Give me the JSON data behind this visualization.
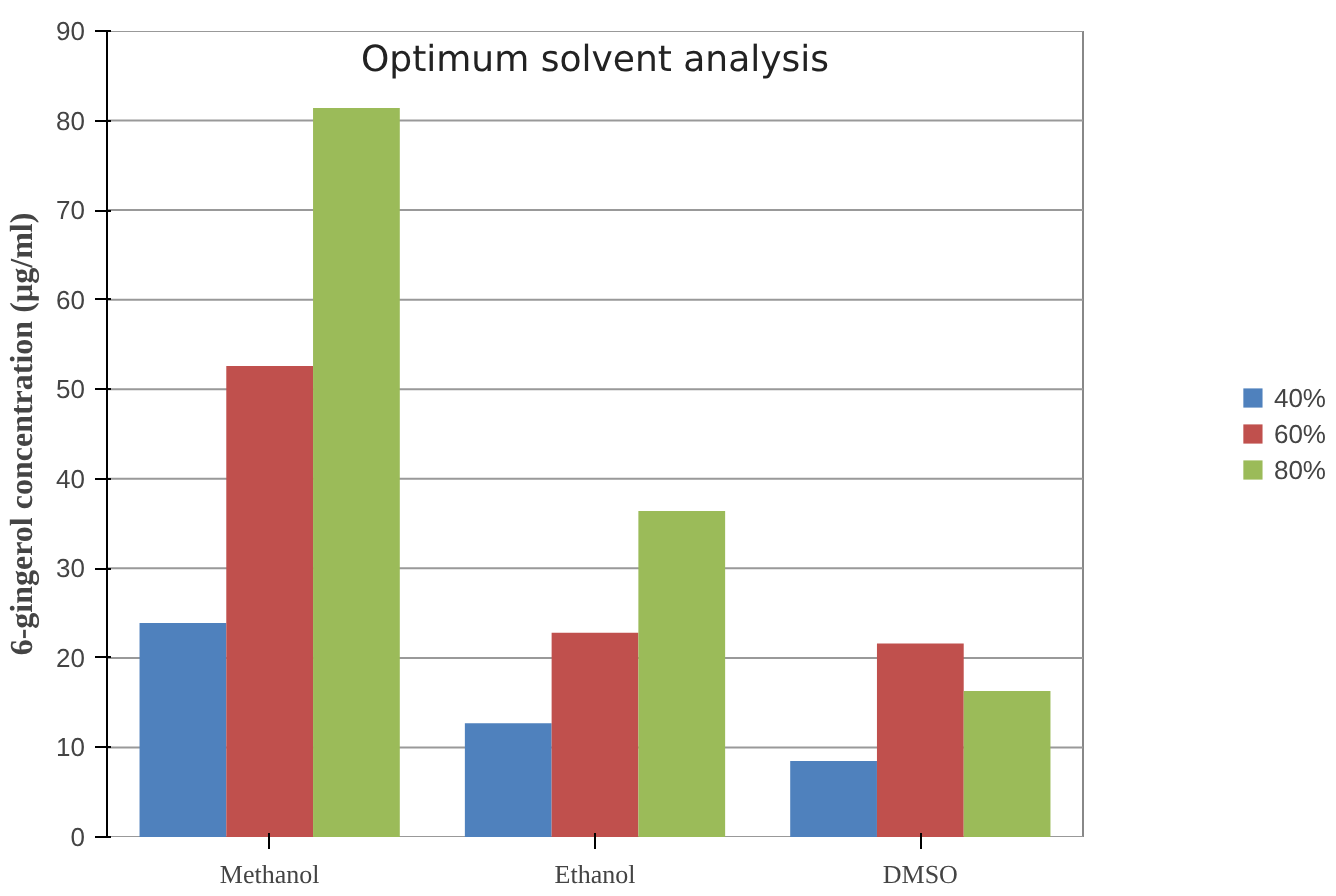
{
  "chart_data": {
    "type": "bar",
    "title": "Optimum solvent analysis",
    "ylabel": "6-gingerol concentration (µg/ml)",
    "categories": [
      "Methanol",
      "Ethanol",
      "DMSO"
    ],
    "series": [
      {
        "name": "40%",
        "color": "#4f81bd",
        "values": [
          23.9,
          12.7,
          8.5
        ]
      },
      {
        "name": "60%",
        "color": "#c0504d",
        "values": [
          52.6,
          22.8,
          21.6
        ]
      },
      {
        "name": "80%",
        "color": "#9bbb59",
        "values": [
          81.4,
          36.4,
          16.3
        ]
      }
    ],
    "ylim": [
      0,
      90
    ],
    "yticks": [
      0,
      10,
      20,
      30,
      40,
      50,
      60,
      70,
      80,
      90
    ],
    "grid": "y",
    "legend": "right"
  }
}
